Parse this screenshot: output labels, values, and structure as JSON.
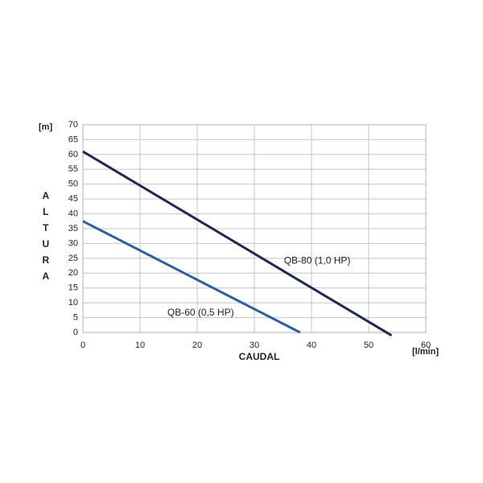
{
  "chart_data": {
    "type": "line",
    "x_label": "CAUDAL",
    "y_label": "ALTURA",
    "x_unit": "[l/min]",
    "y_unit": "[m]",
    "xlim": [
      0,
      60
    ],
    "ylim": [
      0,
      70
    ],
    "xticks": [
      0,
      10,
      20,
      30,
      40,
      50,
      60
    ],
    "yticks": [
      0,
      5,
      10,
      15,
      20,
      25,
      30,
      35,
      40,
      45,
      50,
      55,
      60,
      65,
      70
    ],
    "grid": true,
    "series": [
      {
        "name": "QB-80 (1,0 HP)",
        "color": "#1e2b4f",
        "x": [
          0,
          54
        ],
        "values": [
          61,
          -1
        ]
      },
      {
        "name": "QB-60 (0,5 HP)",
        "color": "#2f5f9c",
        "x": [
          0,
          38
        ],
        "values": [
          37.5,
          0
        ]
      }
    ]
  }
}
